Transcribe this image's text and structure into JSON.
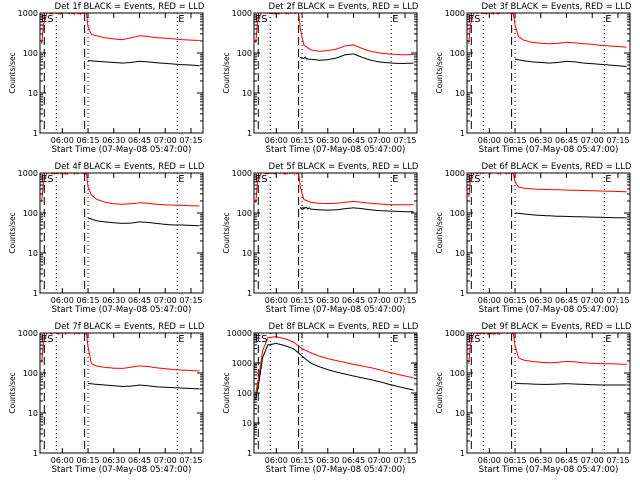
{
  "figure": {
    "ylabel": "Counts/sec",
    "xlabel": "Start Time (07-May-08 05:47:00)"
  },
  "chart_data": [
    {
      "type": "line",
      "title": "Det 1f BLACK = Events, RED = LLD",
      "xlabel": "Start Time (07-May-08 05:47:00)",
      "ylabel": "Counts/sec",
      "x_ticks": [
        "06:00",
        "06:15",
        "06:30",
        "06:45",
        "07:00",
        "07:15"
      ],
      "y_ticks": [
        "1",
        "10",
        "100",
        "1000"
      ],
      "y_scale": "log",
      "ylim": [
        1,
        1000
      ],
      "xlim": [
        "05:47:00",
        "07:22:00"
      ],
      "markers": [
        "ES",
        "E"
      ],
      "series": [
        {
          "color": "#ff0000",
          "t": [
            "05:48",
            "05:49",
            "05:51",
            "05:53",
            "06:14",
            "06:15",
            "06:17",
            "06:20",
            "06:25",
            "06:30",
            "06:35",
            "06:40",
            "06:45",
            "06:50",
            "06:55",
            "07:00",
            "07:05",
            "07:10",
            "07:15",
            "07:20"
          ],
          "values": [
            170,
            500,
            1000,
            1000,
            1000,
            450,
            290,
            270,
            240,
            225,
            215,
            240,
            270,
            260,
            240,
            235,
            225,
            215,
            210,
            205
          ]
        },
        {
          "color": "#000000",
          "t": [
            "06:15",
            "06:20",
            "06:25",
            "06:30",
            "06:35",
            "06:40",
            "06:45",
            "06:50",
            "06:55",
            "07:00",
            "07:05",
            "07:10",
            "07:15",
            "07:20"
          ],
          "values": [
            65,
            62,
            60,
            58,
            56,
            58,
            62,
            60,
            57,
            55,
            53,
            51,
            50,
            48
          ]
        }
      ]
    },
    {
      "type": "line",
      "title": "Det 2f BLACK = Events, RED = LLD",
      "xlabel": "Start Time (07-May-08 05:47:00)",
      "ylabel": "Counts/sec",
      "x_ticks": [
        "06:00",
        "06:15",
        "06:30",
        "06:45",
        "07:00",
        "07:15"
      ],
      "y_ticks": [
        "1",
        "10",
        "100",
        "1000"
      ],
      "y_scale": "log",
      "ylim": [
        1,
        1000
      ],
      "xlim": [
        "05:47:00",
        "07:22:00"
      ],
      "markers": [
        "ES",
        "E"
      ],
      "series": [
        {
          "color": "#ff0000",
          "t": [
            "05:48",
            "05:49",
            "05:51",
            "05:53",
            "06:13",
            "06:14",
            "06:16",
            "06:20",
            "06:25",
            "06:30",
            "06:35",
            "06:40",
            "06:45",
            "06:50",
            "06:55",
            "07:00",
            "07:05",
            "07:10",
            "07:15",
            "07:20"
          ],
          "values": [
            180,
            550,
            1000,
            1000,
            1000,
            400,
            160,
            120,
            110,
            115,
            125,
            150,
            160,
            130,
            110,
            100,
            95,
            92,
            90,
            92
          ]
        },
        {
          "color": "#000000",
          "t": [
            "06:14",
            "06:20",
            "06:25",
            "06:30",
            "06:35",
            "06:40",
            "06:45",
            "06:50",
            "06:55",
            "07:00",
            "07:05",
            "07:10",
            "07:15",
            "07:20"
          ],
          "values": [
            80,
            70,
            66,
            68,
            75,
            90,
            95,
            78,
            66,
            60,
            57,
            55,
            55,
            56
          ]
        }
      ]
    },
    {
      "type": "line",
      "title": "Det 3f BLACK = Events, RED = LLD",
      "xlabel": "Start Time (07-May-08 05:47:00)",
      "ylabel": "Counts/sec",
      "x_ticks": [
        "06:00",
        "06:15",
        "06:30",
        "06:45",
        "07:00",
        "07:15"
      ],
      "y_ticks": [
        "1",
        "10",
        "100",
        "1000"
      ],
      "y_scale": "log",
      "ylim": [
        1,
        1000
      ],
      "xlim": [
        "05:47:00",
        "07:22:00"
      ],
      "markers": [
        "ES",
        "E"
      ],
      "series": [
        {
          "color": "#ff0000",
          "t": [
            "05:48",
            "05:49",
            "05:51",
            "05:53",
            "06:14",
            "06:15",
            "06:17",
            "06:20",
            "06:25",
            "06:30",
            "06:35",
            "06:40",
            "06:45",
            "06:50",
            "06:55",
            "07:00",
            "07:05",
            "07:10",
            "07:15",
            "07:20"
          ],
          "values": [
            170,
            500,
            1000,
            1000,
            1000,
            500,
            260,
            210,
            185,
            175,
            170,
            175,
            185,
            180,
            170,
            165,
            155,
            150,
            145,
            140
          ]
        },
        {
          "color": "#000000",
          "t": [
            "06:15",
            "06:20",
            "06:25",
            "06:30",
            "06:35",
            "06:40",
            "06:45",
            "06:50",
            "06:55",
            "07:00",
            "07:05",
            "07:10",
            "07:15",
            "07:20"
          ],
          "values": [
            70,
            64,
            60,
            58,
            56,
            58,
            62,
            60,
            56,
            54,
            52,
            50,
            48,
            46
          ]
        }
      ]
    },
    {
      "type": "line",
      "title": "Det 4f BLACK = Events, RED = LLD",
      "xlabel": "Start Time (07-May-08 05:47:00)",
      "ylabel": "Counts/sec",
      "x_ticks": [
        "06:00",
        "06:15",
        "06:30",
        "06:45",
        "07:00",
        "07:15"
      ],
      "y_ticks": [
        "1",
        "10",
        "100",
        "1000"
      ],
      "y_scale": "log",
      "ylim": [
        1,
        1000
      ],
      "xlim": [
        "05:47:00",
        "07:22:00"
      ],
      "markers": [
        "ES",
        "E"
      ],
      "series": [
        {
          "color": "#ff0000",
          "t": [
            "05:48",
            "05:49",
            "05:51",
            "05:53",
            "06:14",
            "06:15",
            "06:17",
            "06:20",
            "06:25",
            "06:30",
            "06:35",
            "06:40",
            "06:45",
            "06:50",
            "06:55",
            "07:00",
            "07:05",
            "07:10",
            "07:15",
            "07:20"
          ],
          "values": [
            200,
            550,
            1000,
            1000,
            1000,
            450,
            280,
            220,
            185,
            170,
            165,
            170,
            180,
            175,
            165,
            160,
            158,
            155,
            152,
            150
          ]
        },
        {
          "color": "#000000",
          "t": [
            "06:15",
            "06:20",
            "06:25",
            "06:30",
            "06:35",
            "06:40",
            "06:45",
            "06:50",
            "06:55",
            "07:00",
            "07:05",
            "07:10",
            "07:15",
            "07:20"
          ],
          "values": [
            75,
            64,
            60,
            57,
            55,
            56,
            60,
            58,
            55,
            52,
            50,
            50,
            49,
            48
          ]
        }
      ]
    },
    {
      "type": "line",
      "title": "Det 5f BLACK = Events, RED = LLD",
      "xlabel": "Start Time (07-May-08 05:47:00)",
      "ylabel": "Counts/sec",
      "x_ticks": [
        "06:00",
        "06:15",
        "06:30",
        "06:45",
        "07:00",
        "07:15"
      ],
      "y_ticks": [
        "1",
        "10",
        "100",
        "1000"
      ],
      "y_scale": "log",
      "ylim": [
        1,
        1000
      ],
      "xlim": [
        "05:47:00",
        "07:22:00"
      ],
      "markers": [
        "ES",
        "E"
      ],
      "series": [
        {
          "color": "#ff0000",
          "t": [
            "05:48",
            "05:49",
            "05:51",
            "05:53",
            "06:13",
            "06:14",
            "06:16",
            "06:20",
            "06:25",
            "06:30",
            "06:35",
            "06:40",
            "06:45",
            "06:50",
            "06:55",
            "07:00",
            "07:05",
            "07:10",
            "07:15",
            "07:20"
          ],
          "values": [
            180,
            550,
            1000,
            1000,
            1000,
            450,
            220,
            185,
            175,
            172,
            175,
            185,
            195,
            185,
            175,
            168,
            162,
            160,
            160,
            160
          ]
        },
        {
          "color": "#000000",
          "t": [
            "06:14",
            "06:20",
            "06:25",
            "06:30",
            "06:35",
            "06:40",
            "06:45",
            "06:50",
            "06:55",
            "07:00",
            "07:05",
            "07:10",
            "07:15",
            "07:20"
          ],
          "values": [
            135,
            125,
            120,
            118,
            120,
            128,
            135,
            128,
            120,
            115,
            112,
            110,
            108,
            108
          ]
        }
      ]
    },
    {
      "type": "line",
      "title": "Det 6f BLACK = Events, RED = LLD",
      "xlabel": "Start Time (07-May-08 05:47:00)",
      "ylabel": "Counts/sec",
      "x_ticks": [
        "06:00",
        "06:15",
        "06:30",
        "06:45",
        "07:00",
        "07:15"
      ],
      "y_ticks": [
        "1",
        "10",
        "100",
        "1000"
      ],
      "y_scale": "log",
      "ylim": [
        1,
        1000
      ],
      "xlim": [
        "05:47:00",
        "07:22:00"
      ],
      "markers": [
        "ES",
        "E"
      ],
      "series": [
        {
          "color": "#ff0000",
          "t": [
            "05:48",
            "05:49",
            "05:51",
            "05:53",
            "06:14",
            "06:15",
            "06:17",
            "06:20",
            "06:25",
            "06:30",
            "06:35",
            "06:40",
            "06:45",
            "06:50",
            "06:55",
            "07:00",
            "07:05",
            "07:10",
            "07:15",
            "07:20"
          ],
          "values": [
            250,
            650,
            1000,
            1000,
            1000,
            600,
            450,
            420,
            400,
            390,
            385,
            380,
            375,
            370,
            365,
            360,
            355,
            350,
            345,
            340
          ]
        },
        {
          "color": "#000000",
          "t": [
            "06:15",
            "06:20",
            "06:25",
            "06:30",
            "06:35",
            "06:40",
            "06:45",
            "06:50",
            "06:55",
            "07:00",
            "07:05",
            "07:10",
            "07:15",
            "07:20"
          ],
          "values": [
            100,
            95,
            90,
            87,
            85,
            83,
            82,
            81,
            80,
            79,
            78,
            77,
            76,
            76
          ]
        }
      ]
    },
    {
      "type": "line",
      "title": "Det 7f BLACK = Events, RED = LLD",
      "xlabel": "Start Time (07-May-08 05:47:00)",
      "ylabel": "Counts/sec",
      "x_ticks": [
        "06:00",
        "06:15",
        "06:30",
        "06:45",
        "07:00",
        "07:15"
      ],
      "y_ticks": [
        "1",
        "10",
        "100",
        "1000"
      ],
      "y_scale": "log",
      "ylim": [
        1,
        1000
      ],
      "xlim": [
        "05:47:00",
        "07:22:00"
      ],
      "markers": [
        "ES",
        "E"
      ],
      "series": [
        {
          "color": "#ff0000",
          "t": [
            "05:48",
            "05:49",
            "05:51",
            "05:53",
            "06:14",
            "06:15",
            "06:17",
            "06:20",
            "06:25",
            "06:30",
            "06:35",
            "06:40",
            "06:45",
            "06:50",
            "06:55",
            "07:00",
            "07:05",
            "07:10",
            "07:15",
            "07:20"
          ],
          "values": [
            180,
            550,
            1000,
            1000,
            1000,
            450,
            170,
            150,
            138,
            132,
            130,
            140,
            150,
            145,
            135,
            128,
            122,
            118,
            115,
            112
          ]
        },
        {
          "color": "#000000",
          "t": [
            "06:15",
            "06:20",
            "06:25",
            "06:30",
            "06:35",
            "06:40",
            "06:45",
            "06:50",
            "06:55",
            "07:00",
            "07:05",
            "07:10",
            "07:15",
            "07:20"
          ],
          "values": [
            55,
            52,
            50,
            48,
            46,
            47,
            50,
            48,
            45,
            44,
            43,
            42,
            41,
            40
          ]
        }
      ]
    },
    {
      "type": "line",
      "title": "Det 8f BLACK = Events, RED = LLD",
      "xlabel": "Start Time (07-May-08 05:47:00)",
      "ylabel": "Counts/sec",
      "x_ticks": [
        "06:00",
        "06:15",
        "06:30",
        "06:45",
        "07:00",
        "07:15"
      ],
      "y_ticks": [
        "1",
        "10",
        "100",
        "1000",
        "10000"
      ],
      "y_scale": "log",
      "ylim": [
        1,
        10000
      ],
      "xlim": [
        "05:47:00",
        "07:22:00"
      ],
      "markers": [
        "ES",
        "E"
      ],
      "series": [
        {
          "color": "#ff0000",
          "t": [
            "05:48",
            "05:50",
            "05:52",
            "05:55",
            "06:00",
            "06:05",
            "06:10",
            "06:15",
            "06:20",
            "06:25",
            "06:30",
            "06:35",
            "06:40",
            "06:45",
            "06:50",
            "06:55",
            "07:00",
            "07:05",
            "07:10",
            "07:15",
            "07:20"
          ],
          "values": [
            100,
            400,
            2500,
            7000,
            7500,
            6500,
            5000,
            3000,
            2200,
            1700,
            1400,
            1200,
            1050,
            900,
            800,
            700,
            600,
            500,
            430,
            370,
            320
          ]
        },
        {
          "color": "#000000",
          "t": [
            "05:48",
            "05:50",
            "05:52",
            "05:55",
            "06:00",
            "06:05",
            "06:10",
            "06:15",
            "06:20",
            "06:25",
            "06:30",
            "06:35",
            "06:40",
            "06:45",
            "06:50",
            "06:55",
            "07:00",
            "07:05",
            "07:10",
            "07:15",
            "07:20"
          ],
          "values": [
            60,
            250,
            1500,
            4000,
            4500,
            3800,
            3000,
            1700,
            1000,
            750,
            600,
            500,
            430,
            370,
            320,
            280,
            240,
            200,
            170,
            145,
            125
          ]
        }
      ]
    },
    {
      "type": "line",
      "title": "Det 9f BLACK = Events, RED = LLD",
      "xlabel": "Start Time (07-May-08 05:47:00)",
      "ylabel": "Counts/sec",
      "x_ticks": [
        "06:00",
        "06:15",
        "06:30",
        "06:45",
        "07:00",
        "07:15"
      ],
      "y_ticks": [
        "1",
        "10",
        "100",
        "1000"
      ],
      "y_scale": "log",
      "ylim": [
        1,
        1000
      ],
      "xlim": [
        "05:47:00",
        "07:22:00"
      ],
      "markers": [
        "ES",
        "E"
      ],
      "series": [
        {
          "color": "#ff0000",
          "t": [
            "05:48",
            "05:49",
            "05:51",
            "05:53",
            "06:14",
            "06:15",
            "06:17",
            "06:20",
            "06:25",
            "06:30",
            "06:35",
            "06:40",
            "06:45",
            "06:50",
            "06:55",
            "07:00",
            "07:05",
            "07:10",
            "07:15",
            "07:20"
          ],
          "values": [
            170,
            500,
            1000,
            1000,
            1000,
            480,
            240,
            210,
            195,
            185,
            180,
            185,
            195,
            190,
            180,
            175,
            172,
            170,
            168,
            165
          ]
        },
        {
          "color": "#000000",
          "t": [
            "06:15",
            "06:20",
            "06:25",
            "06:30",
            "06:35",
            "06:40",
            "06:45",
            "06:50",
            "06:55",
            "07:00",
            "07:05",
            "07:10",
            "07:15",
            "07:20"
          ],
          "values": [
            55,
            54,
            53,
            52,
            52,
            53,
            54,
            53,
            52,
            51,
            50,
            50,
            50,
            50
          ]
        }
      ]
    }
  ]
}
